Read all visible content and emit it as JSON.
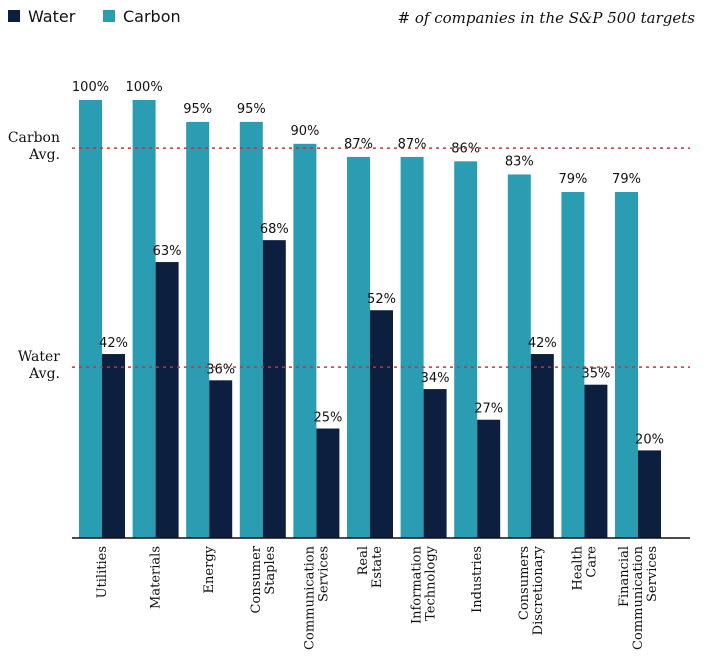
{
  "chart_data": {
    "type": "bar",
    "subtitle": "#   of companies in the S&P 500 targets",
    "categories": [
      [
        "Utilities"
      ],
      [
        "Materials"
      ],
      [
        "Energy"
      ],
      [
        "Consumer",
        "Staples"
      ],
      [
        "Communication",
        "Services"
      ],
      [
        "Real",
        "Estate"
      ],
      [
        "Information",
        "Technology"
      ],
      [
        "Industries"
      ],
      [
        "Consumers",
        "Discretionary"
      ],
      [
        "Health",
        "Care"
      ],
      [
        "Financial",
        "Communication",
        "Services"
      ]
    ],
    "series": [
      {
        "name": "Water",
        "color": "#0d1f3f",
        "values": [
          42,
          63,
          36,
          68,
          25,
          52,
          34,
          27,
          42,
          35,
          20
        ],
        "labels": [
          "42%",
          "63%",
          "36%",
          "68%",
          "25%",
          "52%",
          "34%",
          "27%",
          "42%",
          "35%",
          "20%"
        ]
      },
      {
        "name": "Carbon",
        "color": "#2b9db3",
        "values": [
          100,
          100,
          95,
          95,
          90,
          87,
          87,
          86,
          83,
          79,
          79
        ],
        "labels": [
          "100%",
          "100%",
          "95%",
          "95%",
          "90%",
          "87%",
          "87%",
          "86%",
          "83%",
          "79%",
          "79%"
        ]
      }
    ],
    "reference_lines": [
      {
        "label": [
          "Carbon",
          "Avg."
        ],
        "value": 89,
        "color": "#cc3333"
      },
      {
        "label": [
          "Water",
          "Avg."
        ],
        "value": 39,
        "color": "#cc3333"
      }
    ],
    "ylim": [
      0,
      100
    ],
    "legend_position": "top-left",
    "grid": false
  }
}
